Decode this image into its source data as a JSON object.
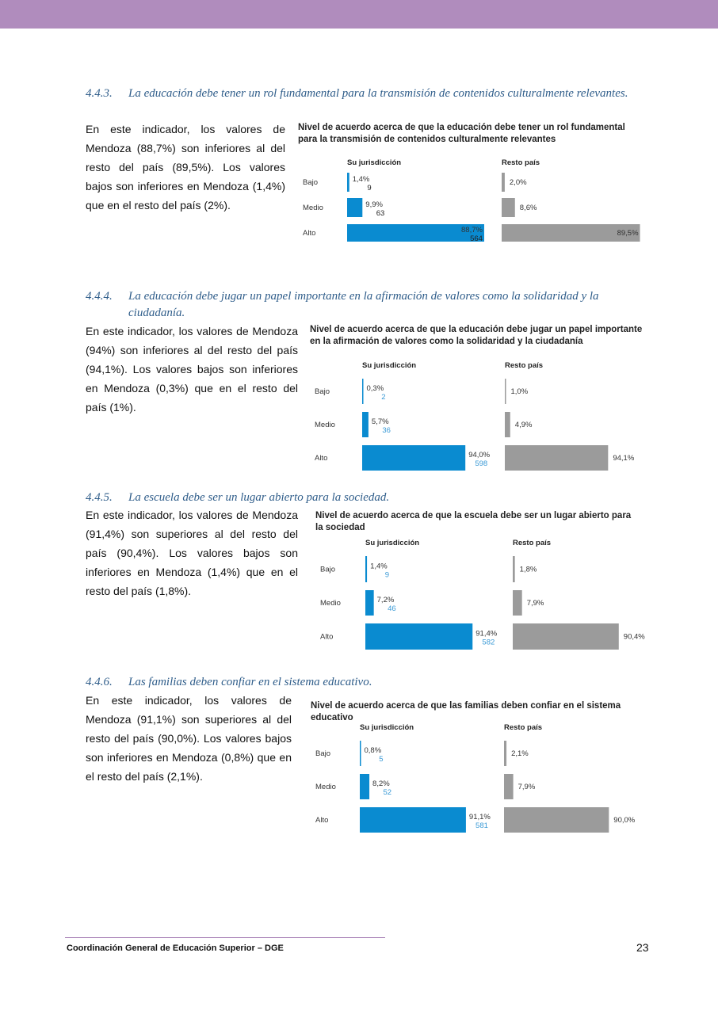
{
  "sections": [
    {
      "number": "4.4.3.",
      "title": "La educación debe tener un rol fundamental para la transmisión de contenidos culturalmente relevantes.",
      "text": "En este indicador, los valores de Mendoza (88,7%) son inferiores al del resto del país (89,5%). Los valores bajos son inferiores en Mendoza (1,4%) que en el resto del país (2%)."
    },
    {
      "number": "4.4.4.",
      "title": "La educación debe jugar un papel importante en la afirmación de valores como la solidaridad y la ciudadanía.",
      "text": "En este indicador, los valores de Mendoza (94%) son inferiores al del resto del país (94,1%). Los valores bajos son inferiores en Mendoza (0,3%) que en el resto del país (1%)."
    },
    {
      "number": "4.4.5.",
      "title": "La escuela debe ser un lugar abierto para la sociedad.",
      "text": "En este indicador, los valores de Mendoza (91,4%) son superiores al del resto del país (90,4%). Los valores bajos son inferiores en Mendoza (1,4%) que en el resto del país (1,8%)."
    },
    {
      "number": "4.4.6.",
      "title": "Las familias deben confiar en el sistema educativo.",
      "text": "En este indicador, los valores de Mendoza (91,1%) son superiores al del resto del país (90,0%). Los valores bajos son inferiores en Mendoza (0,8%) que en el resto del país (2,1%)."
    }
  ],
  "chart_data": [
    {
      "type": "bar",
      "title": "Nivel de acuerdo acerca de que la educación debe tener un rol fundamental para la transmisión de contenidos culturalmente relevantes",
      "categories": [
        "Bajo",
        "Medio",
        "Alto"
      ],
      "series": [
        {
          "name": "Su jurisdicción",
          "values": [
            1.4,
            9.9,
            88.7
          ],
          "labels": [
            "1,4%",
            "9,9%",
            "88,7%"
          ],
          "counts": [
            "9",
            "63",
            "564"
          ],
          "color": "#0a8bd0"
        },
        {
          "name": "Resto país",
          "values": [
            2.0,
            8.6,
            89.5
          ],
          "labels": [
            "2,0%",
            "8,6%",
            "89,5%"
          ],
          "color": "#9b9b9b"
        }
      ]
    },
    {
      "type": "bar",
      "title": "Nivel de acuerdo acerca de que la educación debe jugar un papel importante en la afirmación de valores como la solidaridad y la ciudadanía",
      "categories": [
        "Bajo",
        "Medio",
        "Alto"
      ],
      "series": [
        {
          "name": "Su jurisdicción",
          "values": [
            0.3,
            5.7,
            94.0
          ],
          "labels": [
            "0,3%",
            "5,7%",
            "94,0%"
          ],
          "counts": [
            "2",
            "36",
            "598"
          ],
          "color": "#0a8bd0"
        },
        {
          "name": "Resto país",
          "values": [
            1.0,
            4.9,
            94.1
          ],
          "labels": [
            "1,0%",
            "4,9%",
            "94,1%"
          ],
          "color": "#9b9b9b"
        }
      ]
    },
    {
      "type": "bar",
      "title": "Nivel de acuerdo acerca de que la escuela debe ser un lugar abierto para la sociedad",
      "categories": [
        "Bajo",
        "Medio",
        "Alto"
      ],
      "series": [
        {
          "name": "Su jurisdicción",
          "values": [
            1.4,
            7.2,
            91.4
          ],
          "labels": [
            "1,4%",
            "7,2%",
            "91,4%"
          ],
          "counts": [
            "9",
            "46",
            "582"
          ],
          "color": "#0a8bd0"
        },
        {
          "name": "Resto país",
          "values": [
            1.8,
            7.9,
            90.4
          ],
          "labels": [
            "1,8%",
            "7,9%",
            "90,4%"
          ],
          "color": "#9b9b9b"
        }
      ]
    },
    {
      "type": "bar",
      "title": "Nivel de acuerdo acerca de que las familias deben confiar en el sistema educativo",
      "categories": [
        "Bajo",
        "Medio",
        "Alto"
      ],
      "series": [
        {
          "name": "Su jurisdicción",
          "values": [
            0.8,
            8.2,
            91.1
          ],
          "labels": [
            "0,8%",
            "8,2%",
            "91,1%"
          ],
          "counts": [
            "5",
            "52",
            "581"
          ],
          "color": "#0a8bd0"
        },
        {
          "name": "Resto país",
          "values": [
            2.1,
            7.9,
            90.0
          ],
          "labels": [
            "2,1%",
            "7,9%",
            "90,0%"
          ],
          "color": "#9b9b9b"
        }
      ]
    }
  ],
  "footer": {
    "text": "Coordinación General de Educación Superior – DGE",
    "page": "23"
  },
  "colors": {
    "header_bar": "#b08cbd",
    "heading": "#2f5d8a",
    "jurisdiccion": "#0a8bd0",
    "resto": "#9b9b9b"
  }
}
